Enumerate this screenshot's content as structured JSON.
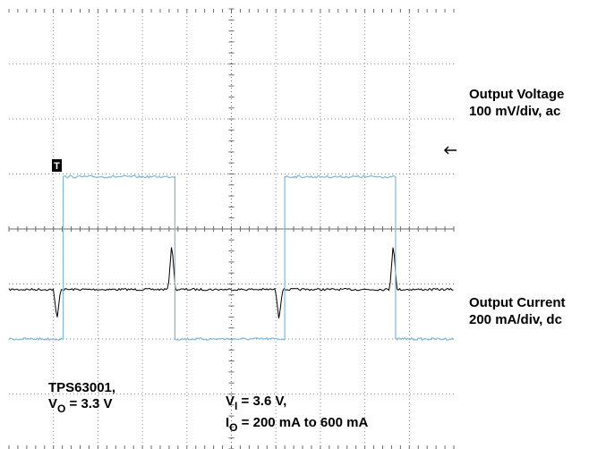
{
  "chart_data": {
    "type": "line",
    "grid": true,
    "series": [
      {
        "name": "Output Voltage",
        "scale_label": "100 mV/div, ac",
        "color": "#000000",
        "baseline_div": 2.9,
        "events": [
          {
            "t_div": 1.08,
            "peak_div": -0.55
          },
          {
            "t_div": 3.66,
            "peak_div": 0.85
          },
          {
            "t_div": 6.07,
            "peak_div": -0.55
          },
          {
            "t_div": 8.64,
            "peak_div": 0.85
          }
        ]
      },
      {
        "name": "Output Current",
        "scale_label": "200 mA/div, dc",
        "color": "#7fb8d8",
        "low_div": 2.0,
        "high_div": 4.95,
        "steps": [
          {
            "t_div": 1.22,
            "to": "high"
          },
          {
            "t_div": 3.73,
            "to": "low"
          },
          {
            "t_div": 6.2,
            "to": "high"
          },
          {
            "t_div": 8.69,
            "to": "low"
          }
        ]
      }
    ],
    "trigger_marker": "T"
  },
  "labels": {
    "voltage_name": "Output Voltage",
    "voltage_scale": "100 mV/div, ac",
    "current_name": "Output Current",
    "current_scale": "200 mA/div, dc"
  },
  "annotations": {
    "device": "TPS63001,",
    "vo_prefix": "V",
    "vo_sub": "O",
    "vo_value": " = 3.3 V",
    "vi_prefix": "V",
    "vi_sub": "I",
    "vi_value": " = 3.6 V,",
    "io_prefix": "I",
    "io_sub": "O",
    "io_value": " = 200 mA to 600 mA"
  }
}
